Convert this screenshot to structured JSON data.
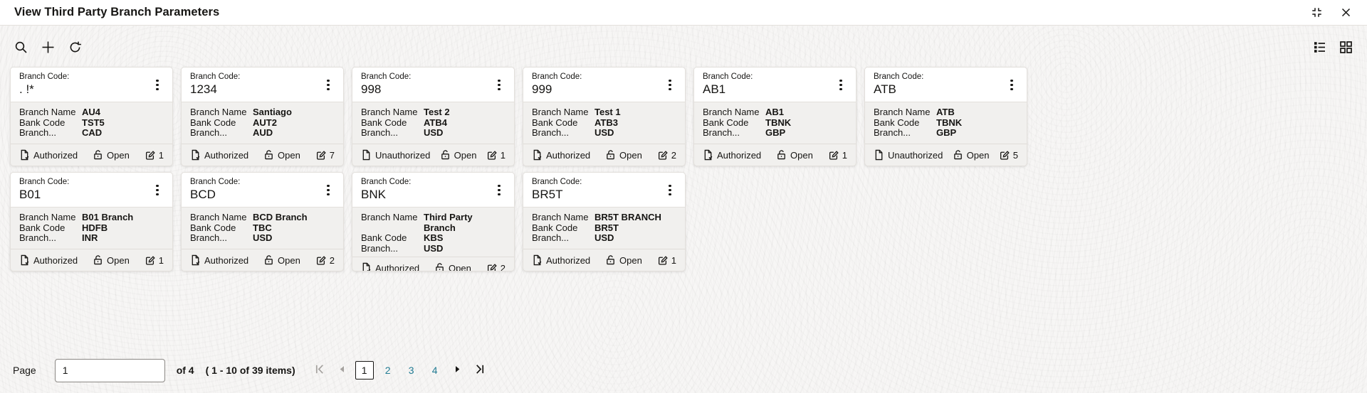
{
  "window": {
    "title": "View Third Party Branch Parameters"
  },
  "colors": {
    "text": "#161513",
    "accent_link": "#227b93",
    "card_body_bg": "#f1f0ee",
    "disabled_icon": "#a5a29f"
  },
  "icons": {
    "search": "magnifier",
    "add": "plus",
    "refresh": "circular-arrow",
    "list_view": "list",
    "grid_view": "grid-tiles",
    "collapse": "collapse-corners",
    "close": "x",
    "card_menu": "kebab-dots",
    "authorized": "document-check",
    "unauthorized": "document",
    "open": "unlocked-padlock",
    "records": "edit-square",
    "first_page": "chevron-bar-left",
    "prev_page": "triangle-left",
    "next_page": "triangle-right",
    "last_page": "chevron-bar-right"
  },
  "card_labels": {
    "code": "Branch Code:",
    "branch_name": "Branch Name",
    "bank_code": "Bank Code",
    "branch_truncated": "Branch..."
  },
  "cards": [
    {
      "code": ". !*",
      "branch_name": "AU4",
      "bank_code": "TST5",
      "branch_currency": "CAD",
      "status": "Authorized",
      "lock": "Open",
      "count": "1"
    },
    {
      "code": "1234",
      "branch_name": "Santiago",
      "bank_code": "AUT2",
      "branch_currency": "AUD",
      "status": "Authorized",
      "lock": "Open",
      "count": "7"
    },
    {
      "code": "998",
      "branch_name": "Test 2",
      "bank_code": "ATB4",
      "branch_currency": "USD",
      "status": "Unauthorized",
      "lock": "Open",
      "count": "1"
    },
    {
      "code": "999",
      "branch_name": "Test 1",
      "bank_code": "ATB3",
      "branch_currency": "USD",
      "status": "Authorized",
      "lock": "Open",
      "count": "2"
    },
    {
      "code": "AB1",
      "branch_name": "AB1",
      "bank_code": "TBNK",
      "branch_currency": "GBP",
      "status": "Authorized",
      "lock": "Open",
      "count": "1"
    },
    {
      "code": "ATB",
      "branch_name": "ATB",
      "bank_code": "TBNK",
      "branch_currency": "GBP",
      "status": "Unauthorized",
      "lock": "Open",
      "count": "5"
    },
    {
      "code": "B01",
      "branch_name": "B01 Branch",
      "bank_code": "HDFB",
      "branch_currency": "INR",
      "status": "Authorized",
      "lock": "Open",
      "count": "1"
    },
    {
      "code": "BCD",
      "branch_name": "BCD Branch",
      "bank_code": "TBC",
      "branch_currency": "USD",
      "status": "Authorized",
      "lock": "Open",
      "count": "2"
    },
    {
      "code": "BNK",
      "branch_name": "Third Party Branch",
      "bank_code": "KBS",
      "branch_currency": "USD",
      "status": "Authorized",
      "lock": "Open",
      "count": "2"
    },
    {
      "code": "BR5T",
      "branch_name": "BR5T BRANCH",
      "bank_code": "BR5T",
      "branch_currency": "USD",
      "status": "Authorized",
      "lock": "Open",
      "count": "1"
    }
  ],
  "pagination": {
    "page_label": "Page",
    "page_input_value": "1",
    "of_text": "of 4",
    "range_text": "( 1 - 10 of 39 items)",
    "pages": [
      "1",
      "2",
      "3",
      "4"
    ],
    "current_page": "1"
  }
}
